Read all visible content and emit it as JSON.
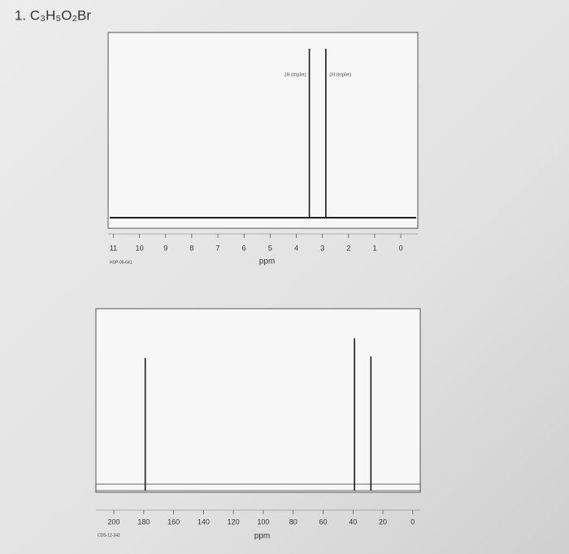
{
  "title": "1. C₃H₅O₂Br",
  "chart_data": [
    {
      "type": "stem",
      "xlabel": "ppm",
      "code": "HSP-05-641",
      "x": [
        3.5,
        2.87
      ],
      "values": [
        100,
        100
      ],
      "annotations": [
        "2H (triplet)",
        "2H (triplet)"
      ],
      "xlim": [
        11.2,
        -0.65
      ],
      "ylim": [
        -6,
        100
      ],
      "xticks": [
        11,
        10,
        9,
        8,
        7,
        6,
        5,
        4,
        3,
        2,
        1,
        0
      ],
      "color": "#1a1a1a"
    },
    {
      "type": "stem",
      "xlabel": "ppm",
      "code": "CDS-12-342",
      "x": [
        179,
        39,
        28
      ],
      "values": [
        80,
        92,
        81
      ],
      "xlim": [
        212,
        -5
      ],
      "ylim": [
        0,
        100
      ],
      "xticks": [
        200,
        180,
        160,
        140,
        120,
        100,
        80,
        60,
        40,
        20,
        0
      ],
      "color": "#1a1a1a"
    }
  ]
}
